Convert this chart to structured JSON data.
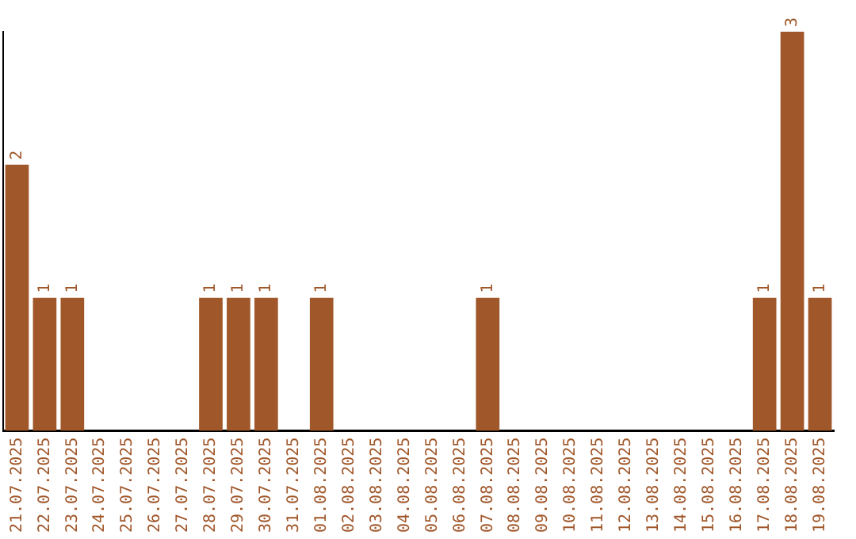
{
  "chart_data": {
    "type": "bar",
    "categories": [
      "21.07.2025",
      "22.07.2025",
      "23.07.2025",
      "24.07.2025",
      "25.07.2025",
      "26.07.2025",
      "27.07.2025",
      "28.07.2025",
      "29.07.2025",
      "30.07.2025",
      "31.07.2025",
      "01.08.2025",
      "02.08.2025",
      "03.08.2025",
      "04.08.2025",
      "05.08.2025",
      "06.08.2025",
      "07.08.2025",
      "08.08.2025",
      "09.08.2025",
      "10.08.2025",
      "11.08.2025",
      "12.08.2025",
      "13.08.2025",
      "14.08.2025",
      "15.08.2025",
      "16.08.2025",
      "17.08.2025",
      "18.08.2025",
      "19.08.2025"
    ],
    "values": [
      2,
      1,
      1,
      0,
      0,
      0,
      0,
      1,
      1,
      1,
      0,
      1,
      0,
      0,
      0,
      0,
      0,
      1,
      0,
      0,
      0,
      0,
      0,
      0,
      0,
      0,
      0,
      1,
      3,
      1
    ],
    "value_labels": [
      "2",
      "1",
      "1",
      null,
      null,
      null,
      null,
      "1",
      "1",
      "1",
      null,
      "1",
      null,
      null,
      null,
      null,
      null,
      "1",
      null,
      null,
      null,
      null,
      null,
      null,
      null,
      null,
      null,
      "1",
      "3",
      "1"
    ],
    "color": "#a0572a",
    "grid": false,
    "legend": false,
    "tick_labels": "x"
  }
}
